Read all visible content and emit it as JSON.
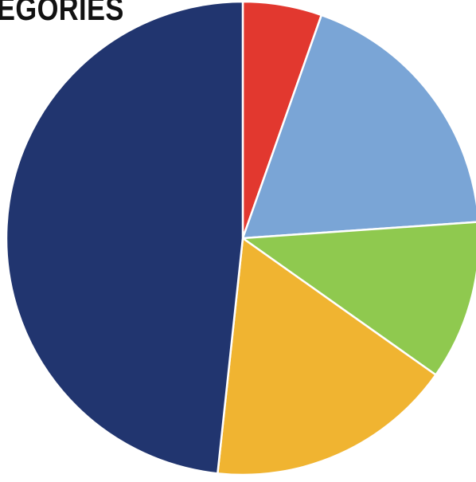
{
  "chart_data": {
    "type": "pie",
    "title": "EGORIES",
    "start_angle_deg": 0,
    "direction": "clockwise",
    "slice_border_color": "#ffffff",
    "series": [
      {
        "values": [
          5.4,
          18.5,
          10.9,
          16.9,
          48.3
        ],
        "colors": [
          "#e2382f",
          "#7aa5d6",
          "#8fc94f",
          "#f0b431",
          "#21356f"
        ]
      }
    ]
  }
}
